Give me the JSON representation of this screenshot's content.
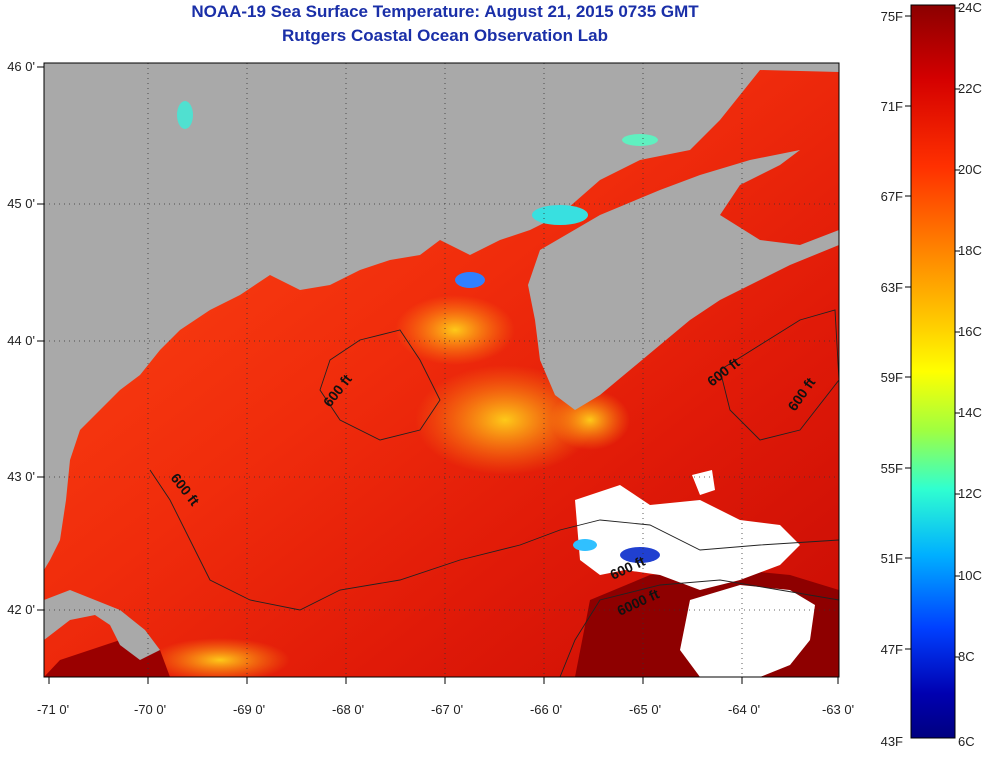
{
  "header": {
    "title": "NOAA-19 Sea Surface Temperature:  August 21, 2015 0735 GMT",
    "subtitle": "Rutgers Coastal Ocean Observation Lab"
  },
  "map": {
    "lon_ticks": [
      "-71 0'",
      "-70 0'",
      "-69 0'",
      "-68 0'",
      "-67 0'",
      "-66 0'",
      "-65 0'",
      "-64 0'",
      "-63 0'"
    ],
    "lat_ticks": [
      "46 0'",
      "45 0'",
      "44 0'",
      "43 0'",
      "42 0'"
    ],
    "contour_labels": [
      "600 ft",
      "600 ft",
      "600 ft",
      "600 ft",
      "600 ft",
      "6000 ft"
    ],
    "colors": {
      "land": "#a9a9a9",
      "cloud": "#ffffff",
      "warm": "#e83010",
      "hot": "#8e0000"
    }
  },
  "colorbar": {
    "fahrenheit_labels": [
      "75F",
      "71F",
      "67F",
      "63F",
      "59F",
      "55F",
      "51F",
      "47F",
      "43F"
    ],
    "celsius_labels": [
      "24C",
      "22C",
      "20C",
      "18C",
      "16C",
      "14C",
      "12C",
      "10C",
      "8C",
      "6C"
    ],
    "gradient": [
      "#8b0000",
      "#d40000",
      "#ff3000",
      "#ff8000",
      "#ffd000",
      "#ffff00",
      "#a0ff40",
      "#30ffd0",
      "#00b0ff",
      "#0040ff",
      "#0000b0",
      "#000080"
    ]
  }
}
